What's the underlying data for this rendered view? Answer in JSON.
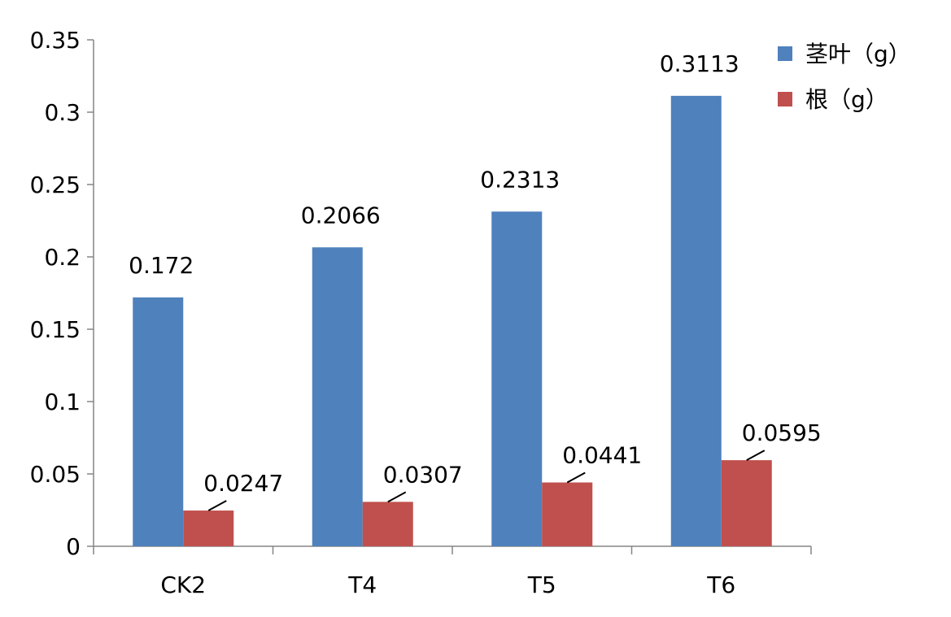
{
  "chart_data": {
    "type": "bar",
    "title": "",
    "xlabel": "",
    "ylabel": "",
    "categories": [
      "CK2",
      "T4",
      "T5",
      "T6"
    ],
    "series": [
      {
        "name": "茎叶（g）",
        "color": "#4F81BD",
        "values": [
          0.172,
          0.2066,
          0.2313,
          0.3113
        ],
        "labels": [
          "0.172",
          "0.2066",
          "0.2313",
          "0.3113"
        ]
      },
      {
        "name": "根（g）",
        "color": "#C0504D",
        "values": [
          0.0247,
          0.0307,
          0.0441,
          0.0595
        ],
        "labels": [
          "0.0247",
          "0.0307",
          "0.0441",
          "0.0595"
        ]
      }
    ],
    "ylim": [
      0,
      0.35
    ],
    "yticks": [
      0,
      0.05,
      0.1,
      0.15,
      0.2,
      0.25,
      0.3,
      0.35
    ],
    "ytick_labels": [
      "0",
      "0.05",
      "0.1",
      "0.15",
      "0.2",
      "0.25",
      "0.3",
      "0.35"
    ],
    "grid": false,
    "legend_position": "top-right"
  }
}
